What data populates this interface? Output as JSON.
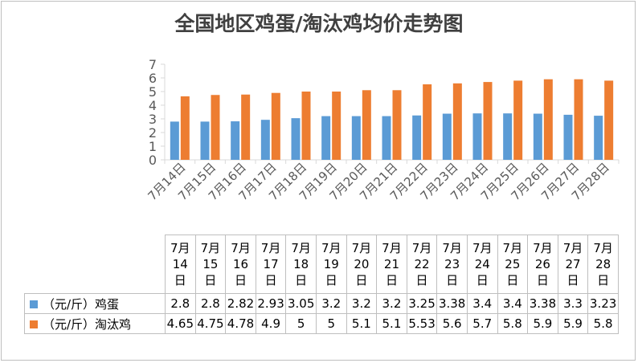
{
  "chart_data": {
    "type": "bar",
    "title": "全国地区鸡蛋/淘汰鸡均价走势图",
    "categories": [
      "7月14日",
      "7月15日",
      "7月16日",
      "7月17日",
      "7月18日",
      "7月19日",
      "7月20日",
      "7月21日",
      "7月22日",
      "7月23日",
      "7月24日",
      "7月25日",
      "7月26日",
      "7月27日",
      "7月28日"
    ],
    "header_lines": [
      [
        "7月",
        "14",
        "日"
      ],
      [
        "7月",
        "15",
        "日"
      ],
      [
        "7月",
        "16",
        "日"
      ],
      [
        "7月",
        "17",
        "日"
      ],
      [
        "7月",
        "18",
        "日"
      ],
      [
        "7月",
        "19",
        "日"
      ],
      [
        "7月",
        "20",
        "日"
      ],
      [
        "7月",
        "21",
        "日"
      ],
      [
        "7月",
        "22",
        "日"
      ],
      [
        "7月",
        "23",
        "日"
      ],
      [
        "7月",
        "24",
        "日"
      ],
      [
        "7月",
        "25",
        "日"
      ],
      [
        "7月",
        "26",
        "日"
      ],
      [
        "7月",
        "27",
        "日"
      ],
      [
        "7月",
        "28",
        "日"
      ]
    ],
    "series": [
      {
        "name": "（元/斤）鸡蛋",
        "color": "#5b9bd5",
        "values": [
          2.8,
          2.8,
          2.82,
          2.93,
          3.05,
          3.2,
          3.2,
          3.2,
          3.25,
          3.38,
          3.4,
          3.4,
          3.38,
          3.3,
          3.23
        ],
        "labels": [
          "2.8",
          "2.8",
          "2.82",
          "2.93",
          "3.05",
          "3.2",
          "3.2",
          "3.2",
          "3.25",
          "3.38",
          "3.4",
          "3.4",
          "3.38",
          "3.3",
          "3.23"
        ]
      },
      {
        "name": "（元/斤）淘汰鸡",
        "color": "#ed7d31",
        "values": [
          4.65,
          4.75,
          4.78,
          4.9,
          5,
          5,
          5.1,
          5.1,
          5.53,
          5.6,
          5.7,
          5.8,
          5.9,
          5.9,
          5.8
        ],
        "labels": [
          "4.65",
          "4.75",
          "4.78",
          "4.9",
          "5",
          "5",
          "5.1",
          "5.1",
          "5.53",
          "5.6",
          "5.7",
          "5.8",
          "5.9",
          "5.9",
          "5.8"
        ]
      }
    ],
    "yticks": [
      0,
      1,
      2,
      3,
      4,
      5,
      6,
      7
    ],
    "ylim": [
      0,
      7
    ],
    "grid": false,
    "legend": "data-table"
  }
}
